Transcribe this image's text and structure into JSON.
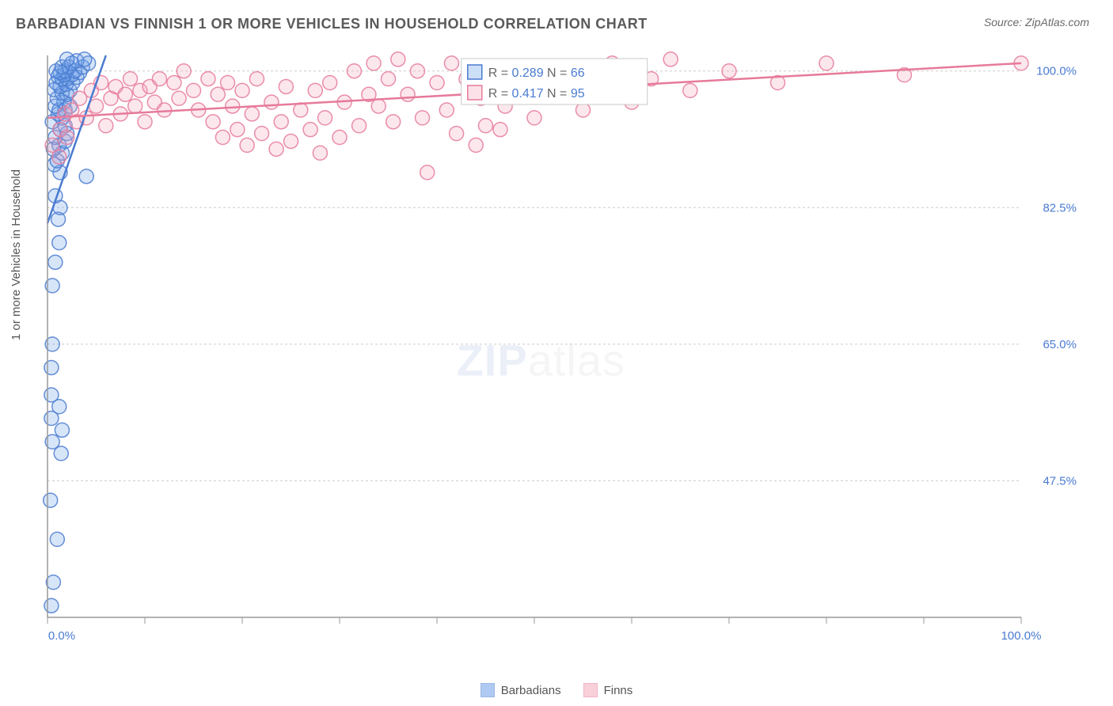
{
  "header": {
    "title": "BARBADIAN VS FINNISH 1 OR MORE VEHICLES IN HOUSEHOLD CORRELATION CHART",
    "source_label": "Source: ZipAtlas.com"
  },
  "chart": {
    "type": "scatter",
    "ylabel": "1 or more Vehicles in Household",
    "xlim": [
      0,
      100
    ],
    "ylim": [
      30,
      102
    ],
    "xticks": [
      0,
      10,
      20,
      30,
      40,
      50,
      60,
      70,
      80,
      90,
      100
    ],
    "xtick_labels": {
      "0": "0.0%",
      "100": "100.0%"
    },
    "yticks": [
      47.5,
      65.0,
      82.5,
      100.0
    ],
    "ytick_labels": [
      "47.5%",
      "65.0%",
      "82.5%",
      "100.0%"
    ],
    "background_color": "#ffffff",
    "grid_color": "#cccccc",
    "axis_color": "#999999",
    "tick_label_color": "#4a7bd0",
    "marker_radius": 9,
    "watermark": {
      "text_bold": "ZIP",
      "text_light": "atlas",
      "color_bold": "#8aa8d8",
      "color_light": "#c8c8c8"
    },
    "series": [
      {
        "name": "Barbadians",
        "color_fill": "#6fa0e8",
        "color_stroke": "#4a7bd0",
        "R": "0.289",
        "N": "66",
        "trend": {
          "x1": 0,
          "y1": 80.5,
          "x2": 6,
          "y2": 102
        },
        "points": [
          [
            0.4,
            31.5
          ],
          [
            0.6,
            34.5
          ],
          [
            1.0,
            40.0
          ],
          [
            0.3,
            45.0
          ],
          [
            1.4,
            51.0
          ],
          [
            0.5,
            52.5
          ],
          [
            1.5,
            54.0
          ],
          [
            0.4,
            55.5
          ],
          [
            1.2,
            57.0
          ],
          [
            0.4,
            58.5
          ],
          [
            0.4,
            62.0
          ],
          [
            0.5,
            65.0
          ],
          [
            0.5,
            72.5
          ],
          [
            0.8,
            75.5
          ],
          [
            1.2,
            78.0
          ],
          [
            1.1,
            81.0
          ],
          [
            1.3,
            82.5
          ],
          [
            0.8,
            84.0
          ],
          [
            4.0,
            86.5
          ],
          [
            1.3,
            87.0
          ],
          [
            0.7,
            88.0
          ],
          [
            1.0,
            88.5
          ],
          [
            1.5,
            89.5
          ],
          [
            0.6,
            90.0
          ],
          [
            1.2,
            90.5
          ],
          [
            1.8,
            91.0
          ],
          [
            0.8,
            91.5
          ],
          [
            2.0,
            92.0
          ],
          [
            1.3,
            92.5
          ],
          [
            1.8,
            93.0
          ],
          [
            0.5,
            93.5
          ],
          [
            1.5,
            94.0
          ],
          [
            1.1,
            94.5
          ],
          [
            1.8,
            95.0
          ],
          [
            1.2,
            95.0
          ],
          [
            2.3,
            95.5
          ],
          [
            0.8,
            95.5
          ],
          [
            1.7,
            96.0
          ],
          [
            1.0,
            96.5
          ],
          [
            2.0,
            97.0
          ],
          [
            1.5,
            97.2
          ],
          [
            2.3,
            97.5
          ],
          [
            0.7,
            97.6
          ],
          [
            1.3,
            98.0
          ],
          [
            1.9,
            98.3
          ],
          [
            2.6,
            98.5
          ],
          [
            0.9,
            98.5
          ],
          [
            2.0,
            99.0
          ],
          [
            1.5,
            99.0
          ],
          [
            3.0,
            99.2
          ],
          [
            1.1,
            99.3
          ],
          [
            2.5,
            99.5
          ],
          [
            1.7,
            99.5
          ],
          [
            3.3,
            99.8
          ],
          [
            1.3,
            99.8
          ],
          [
            1.8,
            100.0
          ],
          [
            2.8,
            100.0
          ],
          [
            0.9,
            100.0
          ],
          [
            2.2,
            100.5
          ],
          [
            3.6,
            100.5
          ],
          [
            1.5,
            100.5
          ],
          [
            4.2,
            101.0
          ],
          [
            2.5,
            101.0
          ],
          [
            3.0,
            101.3
          ],
          [
            2.0,
            101.5
          ],
          [
            3.8,
            101.5
          ]
        ]
      },
      {
        "name": "Finns",
        "color_fill": "#f5a8bd",
        "color_stroke": "#e67a9a",
        "R": "0.417",
        "N": "95",
        "trend": {
          "x1": 0,
          "y1": 94.0,
          "x2": 100,
          "y2": 101.0
        },
        "points": [
          [
            0.5,
            90.5
          ],
          [
            1.3,
            92.5
          ],
          [
            1.2,
            89.0
          ],
          [
            1.8,
            94.5
          ],
          [
            2.0,
            91.5
          ],
          [
            2.5,
            95.0
          ],
          [
            3.0,
            93.5
          ],
          [
            3.3,
            96.5
          ],
          [
            4.0,
            94.0
          ],
          [
            4.5,
            97.5
          ],
          [
            5.0,
            95.5
          ],
          [
            5.5,
            98.5
          ],
          [
            6.0,
            93.0
          ],
          [
            6.5,
            96.5
          ],
          [
            7.0,
            98.0
          ],
          [
            7.5,
            94.5
          ],
          [
            8.0,
            97.0
          ],
          [
            8.5,
            99.0
          ],
          [
            9.0,
            95.5
          ],
          [
            9.5,
            97.5
          ],
          [
            10.0,
            93.5
          ],
          [
            10.5,
            98.0
          ],
          [
            11.0,
            96.0
          ],
          [
            11.5,
            99.0
          ],
          [
            12.0,
            95.0
          ],
          [
            13.0,
            98.5
          ],
          [
            13.5,
            96.5
          ],
          [
            14.0,
            100.0
          ],
          [
            15.0,
            97.5
          ],
          [
            15.5,
            95.0
          ],
          [
            16.5,
            99.0
          ],
          [
            17.0,
            93.5
          ],
          [
            17.5,
            97.0
          ],
          [
            18.0,
            91.5
          ],
          [
            18.5,
            98.5
          ],
          [
            19.0,
            95.5
          ],
          [
            19.5,
            92.5
          ],
          [
            20.0,
            97.5
          ],
          [
            20.5,
            90.5
          ],
          [
            21.0,
            94.5
          ],
          [
            21.5,
            99.0
          ],
          [
            22.0,
            92.0
          ],
          [
            23.0,
            96.0
          ],
          [
            23.5,
            90.0
          ],
          [
            24.0,
            93.5
          ],
          [
            24.5,
            98.0
          ],
          [
            25.0,
            91.0
          ],
          [
            26.0,
            95.0
          ],
          [
            27.0,
            92.5
          ],
          [
            27.5,
            97.5
          ],
          [
            28.0,
            89.5
          ],
          [
            28.5,
            94.0
          ],
          [
            29.0,
            98.5
          ],
          [
            30.0,
            91.5
          ],
          [
            30.5,
            96.0
          ],
          [
            31.5,
            100.0
          ],
          [
            32.0,
            93.0
          ],
          [
            33.0,
            97.0
          ],
          [
            33.5,
            101.0
          ],
          [
            34.0,
            95.5
          ],
          [
            35.0,
            99.0
          ],
          [
            35.5,
            93.5
          ],
          [
            36.0,
            101.5
          ],
          [
            37.0,
            97.0
          ],
          [
            38.0,
            100.0
          ],
          [
            38.5,
            94.0
          ],
          [
            39.0,
            87.0
          ],
          [
            40.0,
            98.5
          ],
          [
            41.0,
            95.0
          ],
          [
            41.5,
            101.0
          ],
          [
            42.0,
            92.0
          ],
          [
            43.0,
            99.0
          ],
          [
            44.0,
            90.5
          ],
          [
            44.5,
            96.5
          ],
          [
            45.0,
            93.0
          ],
          [
            46.0,
            100.0
          ],
          [
            46.5,
            92.5
          ],
          [
            47.0,
            95.5
          ],
          [
            48.0,
            98.0
          ],
          [
            50.0,
            94.0
          ],
          [
            51.0,
            99.5
          ],
          [
            52.0,
            97.0
          ],
          [
            54.0,
            100.5
          ],
          [
            55.0,
            95.0
          ],
          [
            56.0,
            98.0
          ],
          [
            58.0,
            101.0
          ],
          [
            60.0,
            96.0
          ],
          [
            62.0,
            99.0
          ],
          [
            64.0,
            101.5
          ],
          [
            66.0,
            97.5
          ],
          [
            70.0,
            100.0
          ],
          [
            75.0,
            98.5
          ],
          [
            80.0,
            101.0
          ],
          [
            88.0,
            99.5
          ],
          [
            100.0,
            101.0
          ]
        ]
      }
    ],
    "legend_bottom": [
      {
        "label": "Barbadians",
        "fill": "#6fa0e8",
        "stroke": "#4a7bd0"
      },
      {
        "label": "Finns",
        "fill": "#f5a8bd",
        "stroke": "#e67a9a"
      }
    ]
  }
}
